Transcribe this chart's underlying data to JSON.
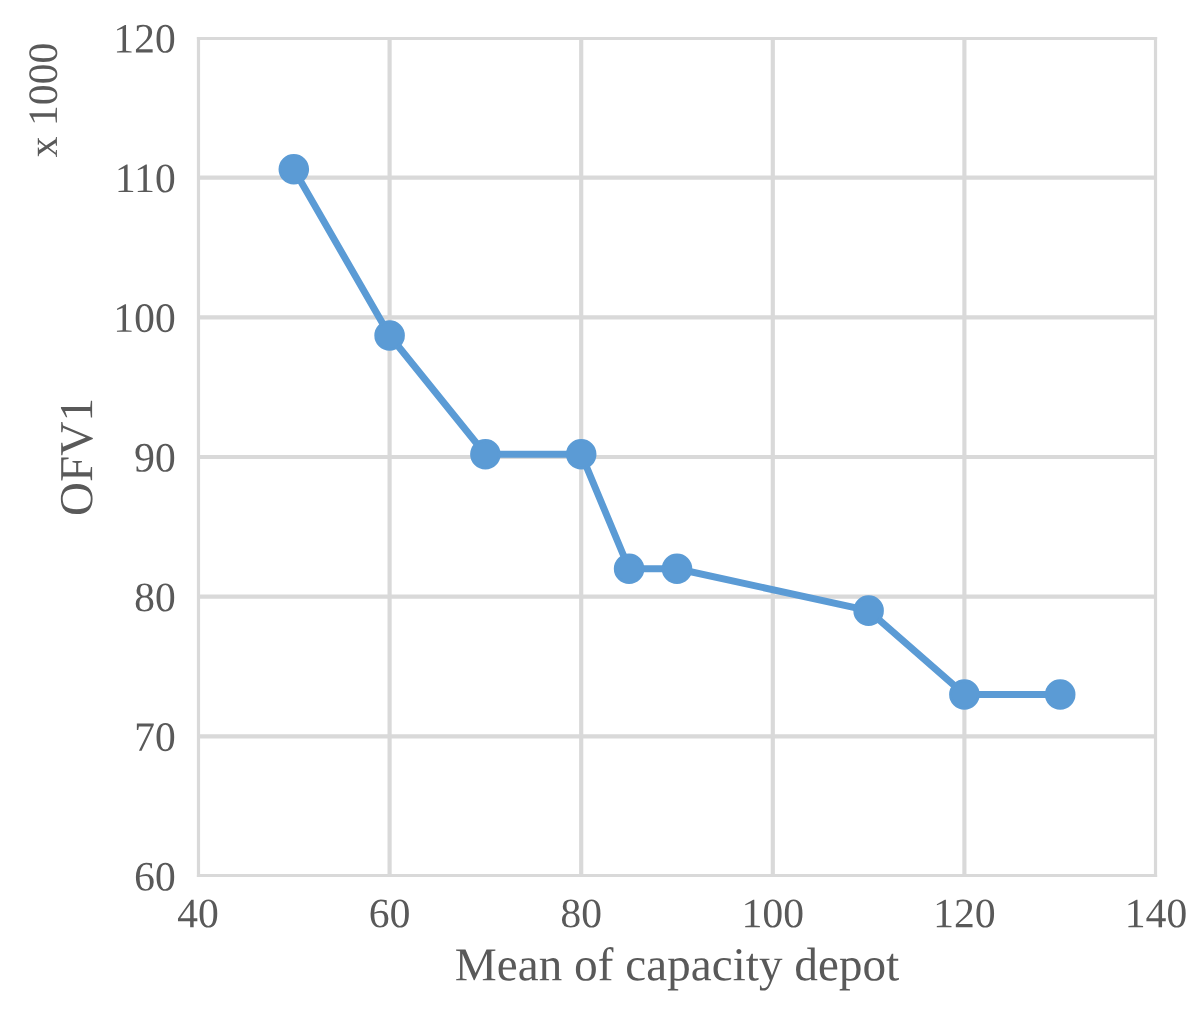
{
  "chart_data": {
    "type": "line",
    "xlabel": "Mean of capacity depot",
    "ylabel": "OFV1",
    "annotations": [
      "x 1000"
    ],
    "x": [
      50,
      60,
      70,
      80,
      85,
      90,
      110,
      120,
      130
    ],
    "series": [
      {
        "color": "#5b9bd5",
        "values": [
          110.6,
          98.7,
          90.2,
          90.2,
          82.0,
          82.0,
          79.0,
          73.0,
          73.0
        ]
      }
    ],
    "xlim": [
      40,
      140
    ],
    "xticks": [
      40,
      60,
      80,
      100,
      120,
      140
    ],
    "ylim": [
      60,
      120
    ],
    "yticks": [
      60,
      70,
      80,
      90,
      100,
      110,
      120
    ],
    "grid": true,
    "marker": "circle",
    "line_style": "solid"
  }
}
